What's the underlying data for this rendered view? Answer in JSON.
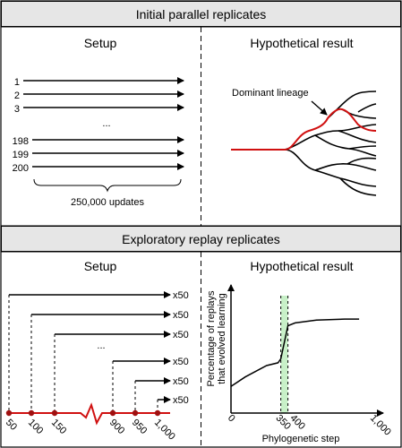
{
  "sections": {
    "top": {
      "title": "Initial parallel replicates",
      "setup_label": "Setup",
      "result_label": "Hypothetical result",
      "replicate_labels": [
        "1",
        "2",
        "3",
        "198",
        "199",
        "200"
      ],
      "ellipsis": "...",
      "updates_label": "250,000 updates",
      "dominant_label": "Dominant lineage"
    },
    "bottom": {
      "title": "Exploratory replay replicates",
      "setup_label": "Setup",
      "result_label": "Hypothetical result",
      "multiplier_label": "x50",
      "ellipsis": "...",
      "timeline_ticks": [
        "50",
        "100",
        "150",
        "900",
        "950",
        "1,000"
      ],
      "ylabel": "Percentage of replays that evolved learning",
      "ylabel_line1": "Percentage of replays",
      "ylabel_line2": "that evolved learning",
      "xlabel": "Phylogenetic step",
      "x_ticks": [
        "0",
        "350",
        "400",
        "1,000"
      ]
    }
  },
  "colors": {
    "lineage": "#d01010",
    "highlight": "#c8f0c8",
    "header_bg": "#e6e6e6"
  },
  "chart_data": {
    "type": "line",
    "x_ticks": [
      "0",
      "350",
      "400",
      "1,000"
    ],
    "x": [
      0,
      100,
      250,
      330,
      350,
      400,
      450,
      600,
      800,
      900
    ],
    "y": [
      0.28,
      0.38,
      0.5,
      0.53,
      0.57,
      0.92,
      0.95,
      0.98,
      0.99,
      0.99
    ],
    "xlim": [
      0,
      1000
    ],
    "ylim": [
      0,
      1.35
    ],
    "highlight_range": [
      350,
      400
    ],
    "xlabel": "Phylogenetic step",
    "ylabel": "Percentage of replays that evolved learning"
  }
}
